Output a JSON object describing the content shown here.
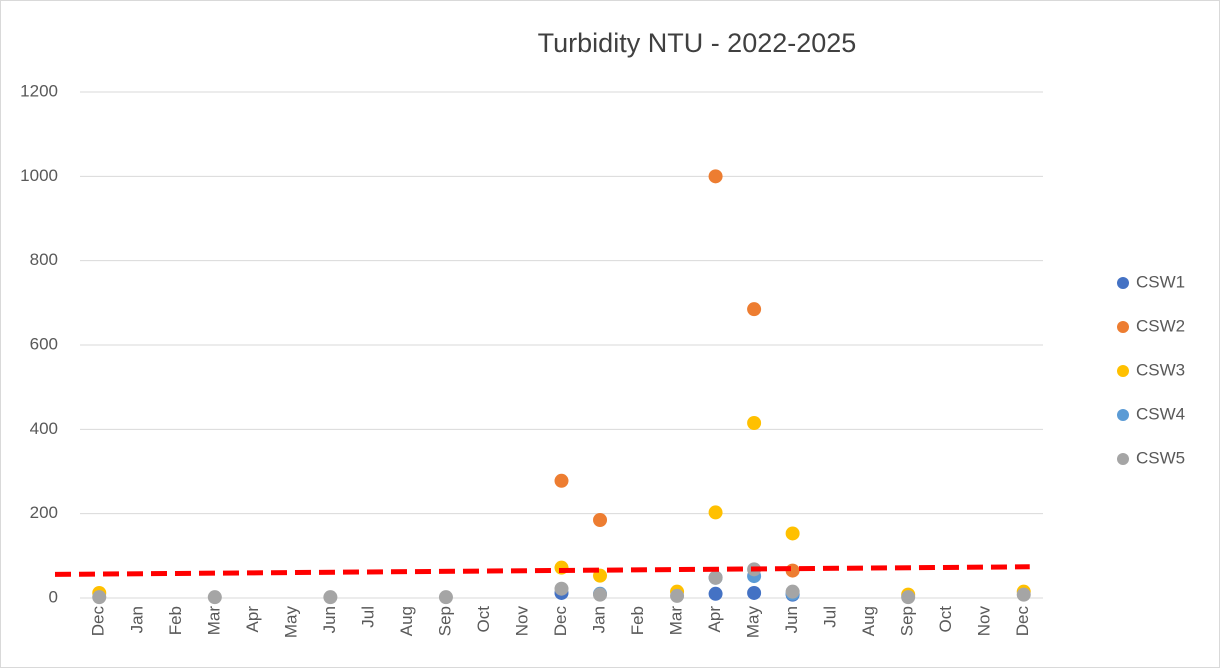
{
  "chart_data": {
    "type": "scatter",
    "title": "Turbidity NTU - 2022-2025",
    "categories": [
      "Dec",
      "Jan",
      "Feb",
      "Mar",
      "Apr",
      "May",
      "Jun",
      "Jul",
      "Aug",
      "Sep",
      "Oct",
      "Nov",
      "Dec",
      "Jan",
      "Feb",
      "Mar",
      "Apr",
      "May",
      "Jun",
      "Jul",
      "Aug",
      "Sep",
      "Oct",
      "Nov",
      "Dec"
    ],
    "series": [
      {
        "name": "CSW1",
        "color": "#4472c4",
        "values": [
          null,
          null,
          null,
          null,
          null,
          null,
          null,
          null,
          null,
          null,
          null,
          null,
          12,
          null,
          null,
          null,
          10,
          12,
          8,
          null,
          null,
          null,
          null,
          null,
          null
        ]
      },
      {
        "name": "CSW2",
        "color": "#ed7d31",
        "values": [
          null,
          null,
          null,
          null,
          null,
          null,
          null,
          null,
          null,
          null,
          null,
          null,
          278,
          185,
          null,
          null,
          1000,
          685,
          65,
          null,
          null,
          null,
          null,
          null,
          null
        ]
      },
      {
        "name": "CSW3",
        "color": "#ffc000",
        "values": [
          12,
          null,
          null,
          null,
          null,
          null,
          null,
          null,
          null,
          null,
          null,
          null,
          72,
          53,
          null,
          15,
          203,
          415,
          153,
          null,
          null,
          8,
          null,
          null,
          15
        ]
      },
      {
        "name": "CSW4",
        "color": "#5b9bd5",
        "values": [
          null,
          null,
          null,
          null,
          null,
          null,
          null,
          null,
          null,
          null,
          null,
          null,
          null,
          10,
          null,
          null,
          48,
          52,
          10,
          null,
          null,
          null,
          null,
          null,
          null
        ]
      },
      {
        "name": "CSW5",
        "color": "#a5a5a5",
        "values": [
          2,
          null,
          null,
          2,
          null,
          null,
          2,
          null,
          null,
          2,
          null,
          null,
          22,
          8,
          null,
          5,
          48,
          68,
          15,
          null,
          null,
          2,
          null,
          null,
          8
        ]
      }
    ],
    "trendline": {
      "color": "#ff0000",
      "values": [
        56,
        74
      ]
    },
    "ylim": [
      0,
      1200
    ],
    "yticks": [
      0,
      200,
      400,
      600,
      800,
      1000,
      1200
    ],
    "grid": true,
    "legend": "right"
  }
}
